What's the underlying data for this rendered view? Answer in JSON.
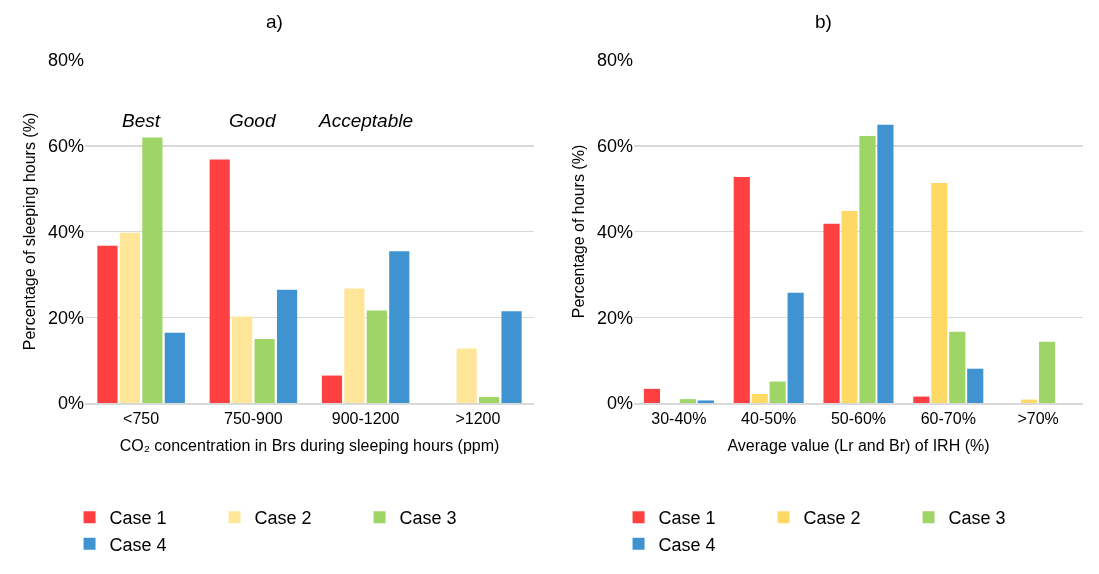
{
  "chart_data": [
    {
      "type": "bar",
      "title": "a)",
      "xlabel": "CO₂ concentration in Brs during sleeping hours (ppm)",
      "ylabel": "Percentage of sleeping hours (%)",
      "categories": [
        "<750",
        "750-900",
        "900-1200",
        ">1200"
      ],
      "series": [
        {
          "name": "Case 1",
          "color": "#ff4040",
          "values": [
            36.7,
            56.8,
            6.4,
            null
          ]
        },
        {
          "name": "Case 2",
          "color": "#ffe699",
          "values": [
            39.7,
            20.2,
            26.7,
            12.7
          ]
        },
        {
          "name": "Case 3",
          "color": "#9fd467",
          "values": [
            61.9,
            14.9,
            21.6,
            1.4
          ]
        },
        {
          "name": "Case 4",
          "color": "#3f93d0",
          "values": [
            16.4,
            26.4,
            35.4,
            21.4
          ]
        }
      ],
      "ylim": [
        0,
        80
      ],
      "yticks": [
        {
          "value": 0,
          "label": "0%"
        },
        {
          "value": 20,
          "label": "20%"
        },
        {
          "value": 40,
          "label": "40%"
        },
        {
          "value": 60,
          "label": "60%"
        },
        {
          "value": 80,
          "label": "80%"
        }
      ],
      "grid": "y",
      "legend": "bottom",
      "annotations": [
        "Best",
        "Good",
        "Acceptable"
      ]
    },
    {
      "type": "bar",
      "title": "b)",
      "xlabel": "Average value (Lr and Br) of IRH (%)",
      "ylabel": "Percentage of hours (%)",
      "categories": [
        "30-40%",
        "40-50%",
        "50-60%",
        "60-70%",
        ">70%"
      ],
      "series": [
        {
          "name": "Case 1",
          "color": "#ff4040",
          "values": [
            3.3,
            52.7,
            41.8,
            1.5,
            null
          ]
        },
        {
          "name": "Case 2",
          "color": "#ffd966",
          "values": [
            null,
            2.1,
            44.8,
            51.3,
            0.8
          ]
        },
        {
          "name": "Case 3",
          "color": "#9fd467",
          "values": [
            0.9,
            5.0,
            62.3,
            16.6,
            14.3
          ]
        },
        {
          "name": "Case 4",
          "color": "#3f93d0",
          "values": [
            0.6,
            25.7,
            64.9,
            8.0,
            null
          ]
        }
      ],
      "ylim": [
        0,
        80
      ],
      "yticks": [
        {
          "value": 0,
          "label": "0%"
        },
        {
          "value": 20,
          "label": "20%"
        },
        {
          "value": 40,
          "label": "40%"
        },
        {
          "value": 60,
          "label": "60%"
        },
        {
          "value": 80,
          "label": "80%"
        }
      ],
      "grid": "y",
      "legend": "bottom"
    }
  ]
}
